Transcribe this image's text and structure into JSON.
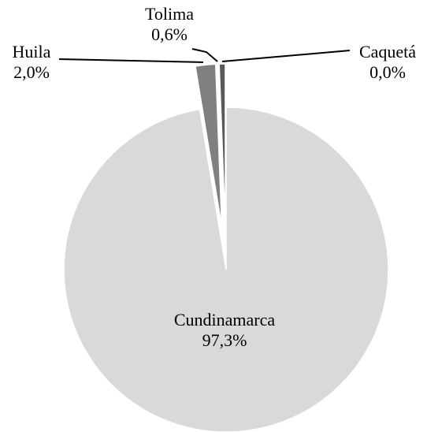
{
  "chart_data": {
    "type": "pie",
    "categories": [
      "Cundinamarca",
      "Huila",
      "Tolima",
      "Caquetá"
    ],
    "values": [
      97.3,
      2.0,
      0.6,
      0.0
    ],
    "value_labels": [
      "97,3%",
      "2,0%",
      "0,6%",
      "0,0%"
    ],
    "colors": [
      "#d9d9d9",
      "#808080",
      "#595959",
      "#404040"
    ]
  }
}
